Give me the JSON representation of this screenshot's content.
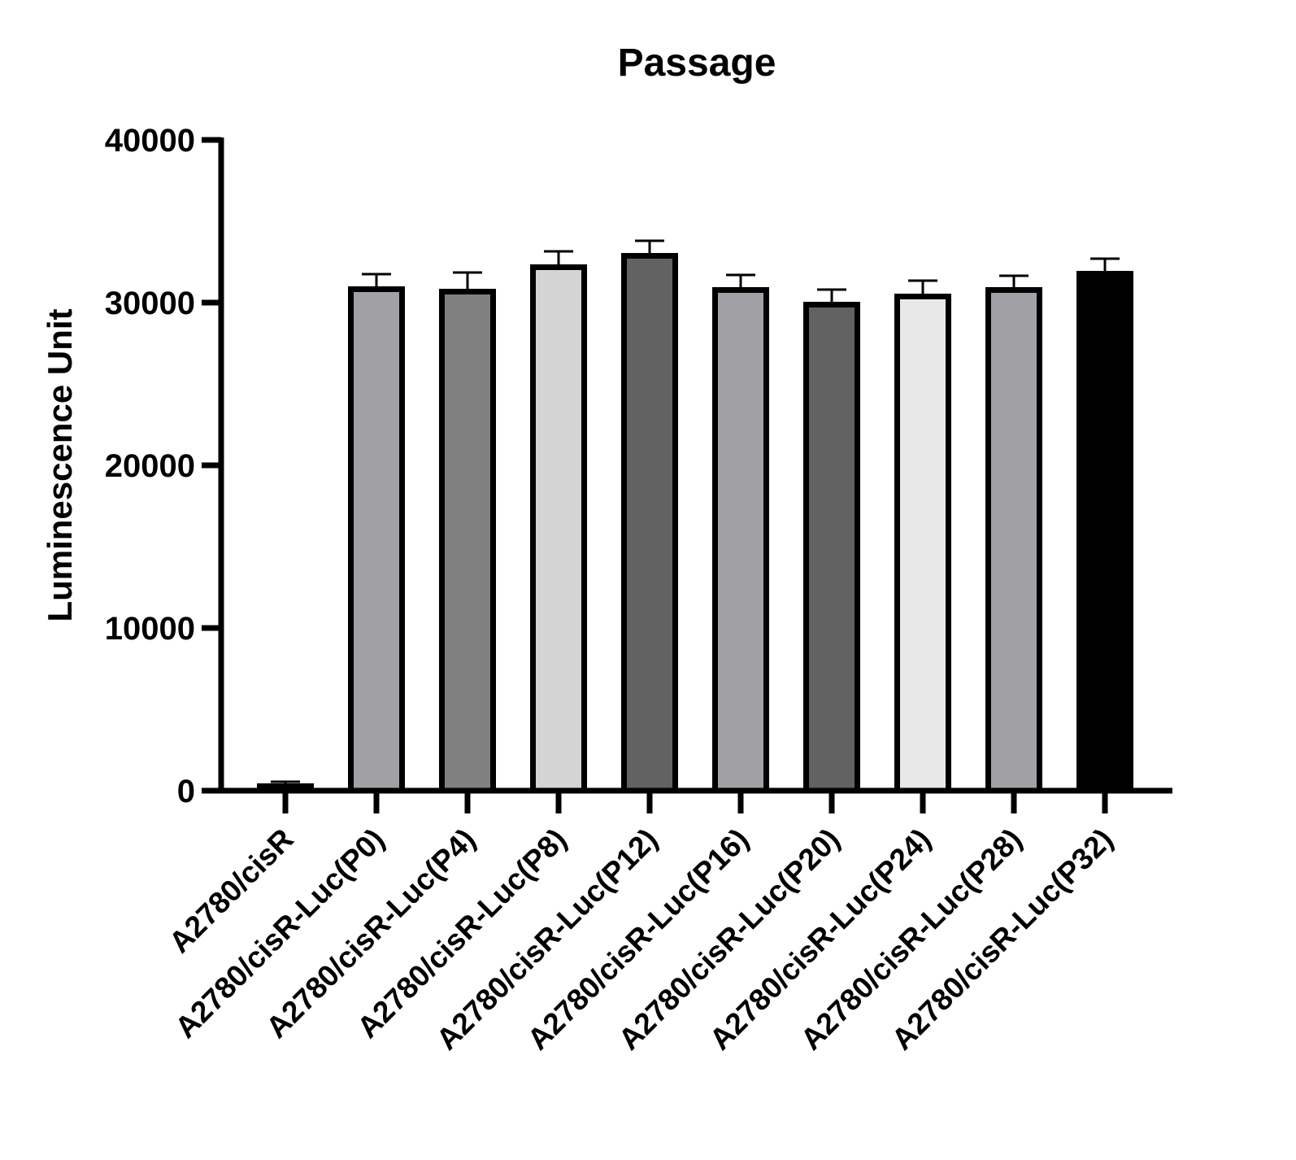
{
  "chart_data": {
    "type": "bar",
    "title": "Passage",
    "xlabel": "",
    "ylabel": "Luminescence Unit",
    "ylim": [
      0,
      40000
    ],
    "yticks": [
      0,
      10000,
      20000,
      30000,
      40000
    ],
    "ytick_labels": [
      "0",
      "10000",
      "20000",
      "30000",
      "40000"
    ],
    "grid": false,
    "error_bars": "upper",
    "categories": [
      "A2780/cisR",
      "A2780/cisR-Luc(P0)",
      "A2780/cisR-Luc(P4)",
      "A2780/cisR-Luc(P8)",
      "A2780/cisR-Luc(P12)",
      "A2780/cisR-Luc(P16)",
      "A2780/cisR-Luc(P20)",
      "A2780/cisR-Luc(P24)",
      "A2780/cisR-Luc(P28)",
      "A2780/cisR-Luc(P32)"
    ],
    "values": [
      450,
      31000,
      30850,
      32350,
      33050,
      30950,
      30050,
      30550,
      30950,
      31950
    ],
    "errors": [
      100,
      750,
      1000,
      800,
      750,
      750,
      750,
      800,
      700,
      750
    ],
    "colors": [
      "#000000",
      "#a1a1a5",
      "#808080",
      "#d4d4d4",
      "#626262",
      "#a1a1a5",
      "#626262",
      "#e8e8e8",
      "#a1a1a5",
      "#000000"
    ],
    "edge_color": "#000000"
  }
}
